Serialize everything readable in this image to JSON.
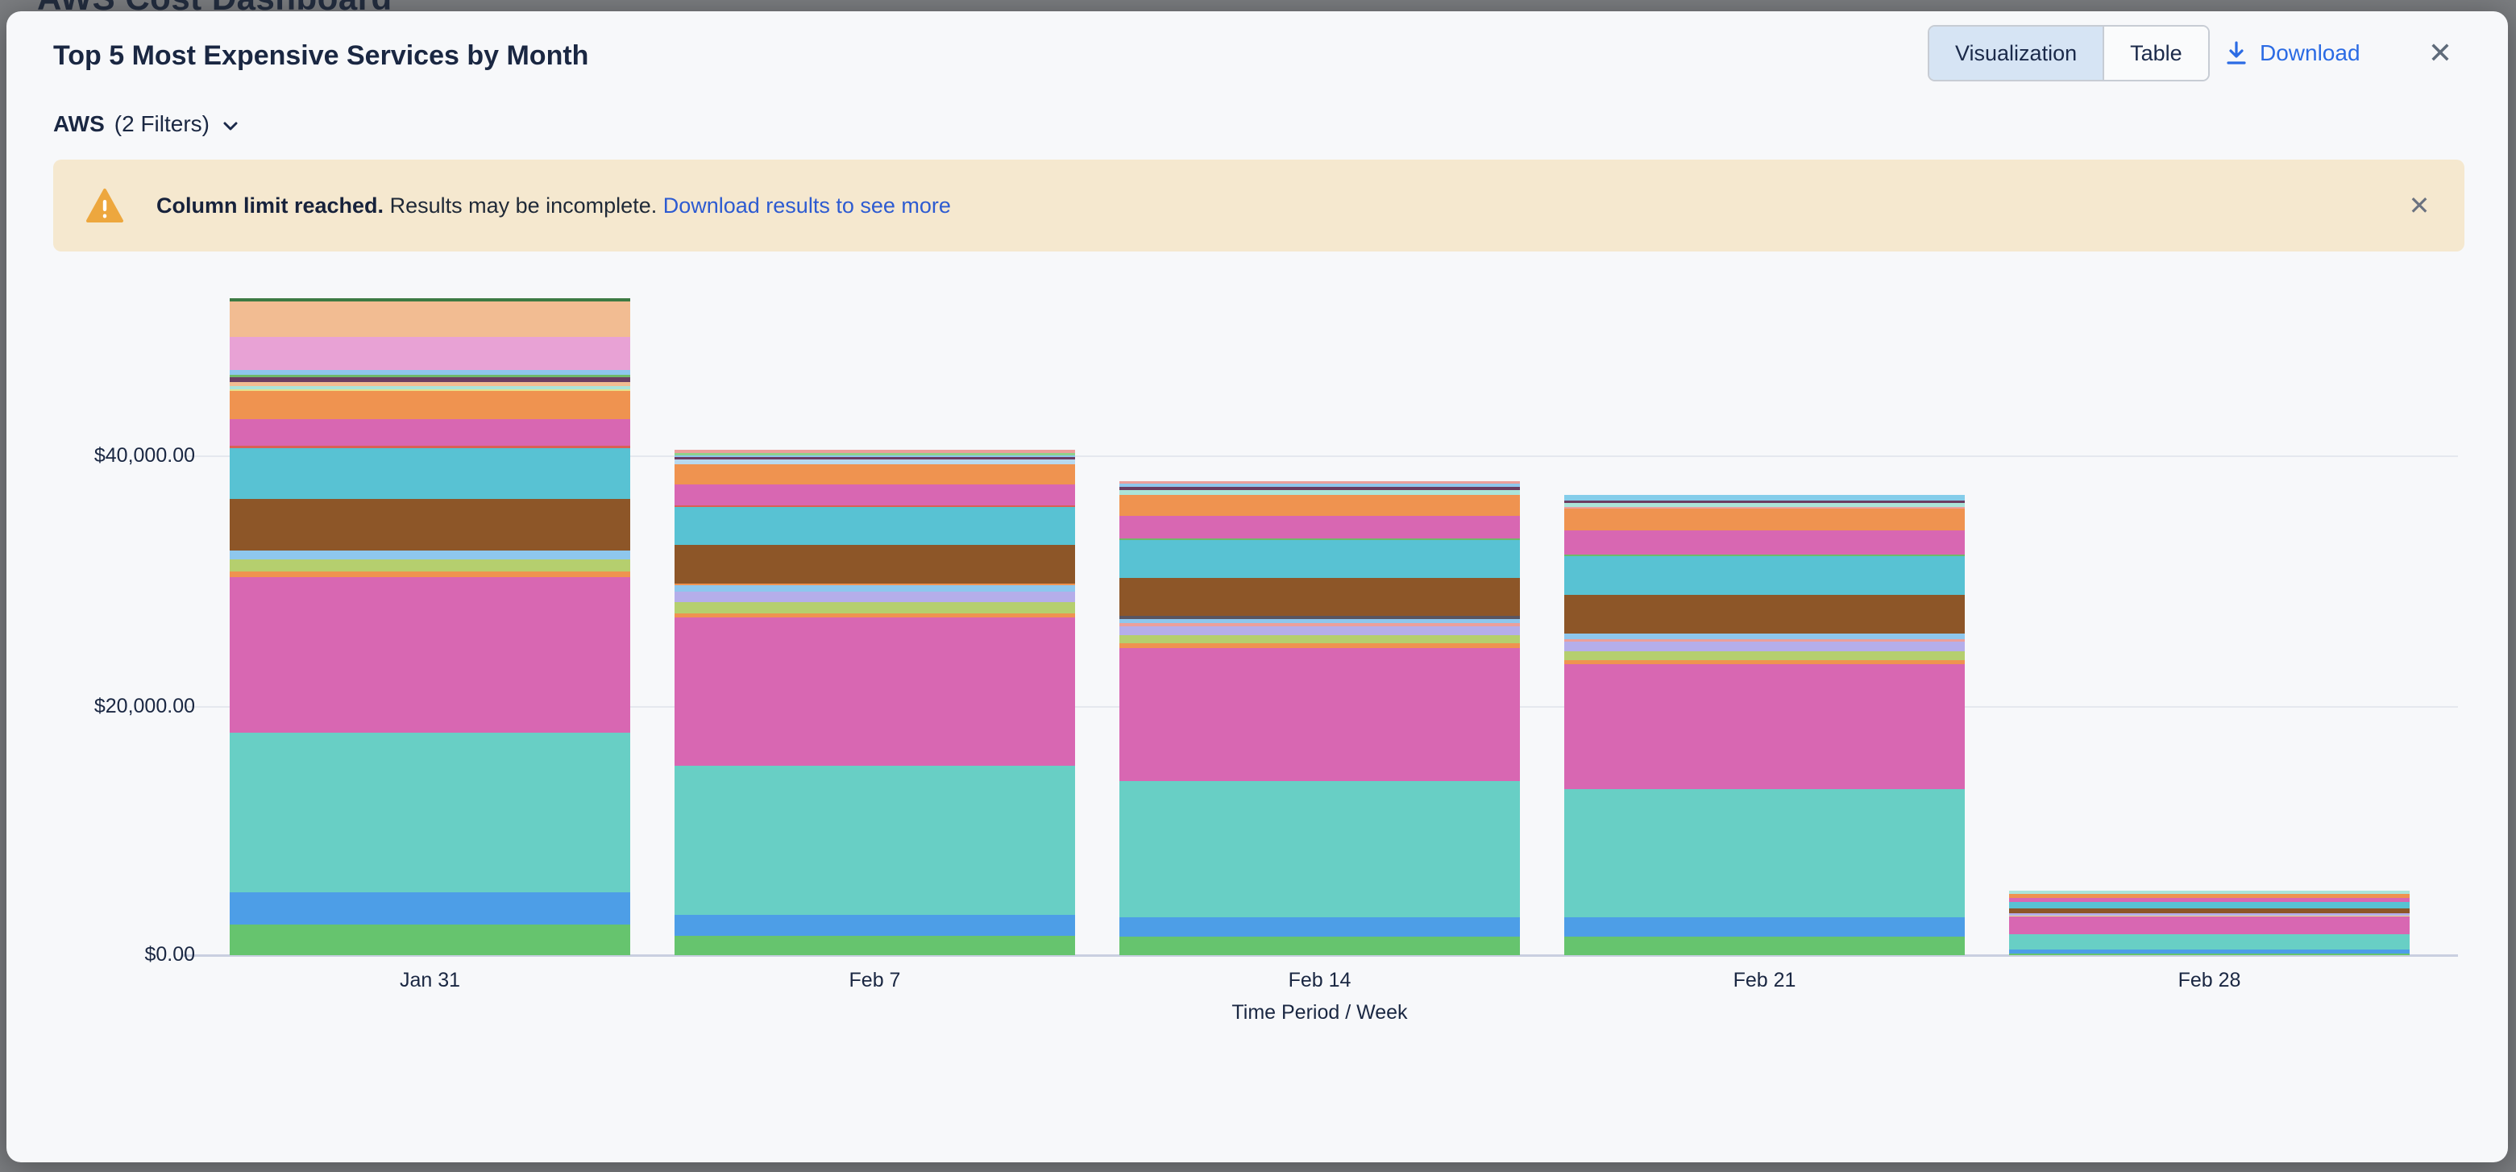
{
  "backdrop": {
    "page_title": "AWS Cost Dashboard"
  },
  "header": {
    "title": "Top 5 Most Expensive Services by Month",
    "view_toggle": {
      "options": [
        "Visualization",
        "Table"
      ],
      "selected": "Visualization"
    },
    "download_label": "Download"
  },
  "icons": {
    "close": "✕"
  },
  "filters": {
    "provider": "AWS",
    "summary": "(2 Filters)"
  },
  "banner": {
    "bold_text": "Column limit reached.",
    "text": " Results may be incomplete. ",
    "link_text": "Download results to see more",
    "background": "#f5e8cf",
    "icon_color": "#eda73e"
  },
  "colors": {
    "accent_blue": "#2b6be4",
    "link_blue": "#2d5bd1",
    "text_dark": "#1a2742",
    "selected_toggle_bg": "#d6e4f4",
    "modal_bg": "#f7f8fa",
    "backdrop_gray": "#7b7d80"
  },
  "chart_data": {
    "type": "bar",
    "stacked": true,
    "title": "Top 5 Most Expensive Services by Month",
    "xlabel": "Time Period / Week",
    "ylabel": "",
    "y_ticks": [
      "$0.00",
      "$20,000.00",
      "$40,000.00"
    ],
    "y_tick_values": [
      0,
      20000,
      40000
    ],
    "ylim": [
      0,
      53000
    ],
    "grid": "horizontal",
    "legend": "none",
    "categories": [
      "Jan 31",
      "Feb 7",
      "Feb 14",
      "Feb 21",
      "Feb 28"
    ],
    "palette": {
      "green": "#66c46e",
      "blue": "#4d9ee7",
      "teal": "#68cfc5",
      "magenta": "#d867b2",
      "orange": "#ef9350",
      "yellowgreen": "#b5cf6e",
      "lavender": "#b5aeea",
      "lightblue": "#8ec7ed",
      "paleblue": "#b8d9f0",
      "brown": "#8d5628",
      "cyan": "#58c2d3",
      "coral": "#d96055",
      "yellow": "#e8e08a",
      "mint": "#abe4d9",
      "peach": "#f2bc92",
      "maroon": "#6b3d62",
      "green2": "#6fb96a",
      "plum": "#e8a2d5",
      "darkgreen": "#3d7a44",
      "salmon": "#eb9f9b",
      "lightgreen": "#8fd18a",
      "skyblue": "#85cdea",
      "darkslate": "#5a5560"
    },
    "segments_order": "bottom_to_top",
    "bars": [
      {
        "category": "Jan 31",
        "total": 52925,
        "segments": [
          [
            "green",
            2470
          ],
          [
            "blue",
            2600
          ],
          [
            "teal",
            12860
          ],
          [
            "magenta",
            12530
          ],
          [
            "orange",
            455
          ],
          [
            "yellowgreen",
            975
          ],
          [
            "lightblue",
            715
          ],
          [
            "brown",
            4155
          ],
          [
            "cyan",
            4090
          ],
          [
            "coral",
            195
          ],
          [
            "magenta",
            2145
          ],
          [
            "orange",
            2270
          ],
          [
            "yellow",
            130
          ],
          [
            "mint",
            260
          ],
          [
            "peach",
            325
          ],
          [
            "maroon",
            390
          ],
          [
            "green2",
            195
          ],
          [
            "lightblue",
            390
          ],
          [
            "plum",
            2660
          ],
          [
            "peach",
            2855
          ],
          [
            "darkgreen",
            260
          ]
        ]
      },
      {
        "category": "Feb 7",
        "total": 40725,
        "segments": [
          [
            "green",
            1560
          ],
          [
            "blue",
            1690
          ],
          [
            "teal",
            12015
          ],
          [
            "magenta",
            11950
          ],
          [
            "orange",
            325
          ],
          [
            "yellowgreen",
            910
          ],
          [
            "lavender",
            845
          ],
          [
            "lightblue",
            520
          ],
          [
            "orange",
            130
          ],
          [
            "brown",
            3115
          ],
          [
            "cyan",
            3050
          ],
          [
            "coral",
            130
          ],
          [
            "magenta",
            1690
          ],
          [
            "orange",
            1625
          ],
          [
            "paleblue",
            390
          ],
          [
            "maroon",
            195
          ],
          [
            "lightblue",
            130
          ],
          [
            "lightgreen",
            195
          ],
          [
            "salmon",
            260
          ]
        ]
      },
      {
        "category": "Feb 14",
        "total": 38190,
        "segments": [
          [
            "green",
            1495
          ],
          [
            "blue",
            1560
          ],
          [
            "teal",
            10975
          ],
          [
            "magenta",
            10715
          ],
          [
            "orange",
            390
          ],
          [
            "yellowgreen",
            650
          ],
          [
            "lavender",
            715
          ],
          [
            "salmon",
            260
          ],
          [
            "lightblue",
            325
          ],
          [
            "darkslate",
            260
          ],
          [
            "brown",
            3050
          ],
          [
            "cyan",
            3050
          ],
          [
            "green2",
            130
          ],
          [
            "magenta",
            1820
          ],
          [
            "orange",
            1690
          ],
          [
            "mint",
            390
          ],
          [
            "maroon",
            260
          ],
          [
            "lightblue",
            260
          ],
          [
            "salmon",
            195
          ]
        ]
      },
      {
        "category": "Feb 21",
        "total": 37085,
        "segments": [
          [
            "green",
            1495
          ],
          [
            "blue",
            1560
          ],
          [
            "teal",
            10325
          ],
          [
            "magenta",
            10065
          ],
          [
            "orange",
            325
          ],
          [
            "yellowgreen",
            715
          ],
          [
            "lavender",
            780
          ],
          [
            "salmon",
            195
          ],
          [
            "lightblue",
            455
          ],
          [
            "brown",
            3115
          ],
          [
            "cyan",
            3115
          ],
          [
            "green2",
            130
          ],
          [
            "magenta",
            1950
          ],
          [
            "orange",
            1755
          ],
          [
            "salmon",
            130
          ],
          [
            "mint",
            325
          ],
          [
            "maroon",
            195
          ],
          [
            "skyblue",
            455
          ]
        ]
      },
      {
        "category": "Feb 28",
        "total": 5200,
        "segments": [
          [
            "green",
            130
          ],
          [
            "blue",
            325
          ],
          [
            "teal",
            1235
          ],
          [
            "magenta",
            1430
          ],
          [
            "yellow",
            65
          ],
          [
            "lavender",
            195
          ],
          [
            "brown",
            390
          ],
          [
            "cyan",
            520
          ],
          [
            "magenta",
            325
          ],
          [
            "orange",
            325
          ],
          [
            "mint",
            260
          ]
        ]
      }
    ]
  }
}
